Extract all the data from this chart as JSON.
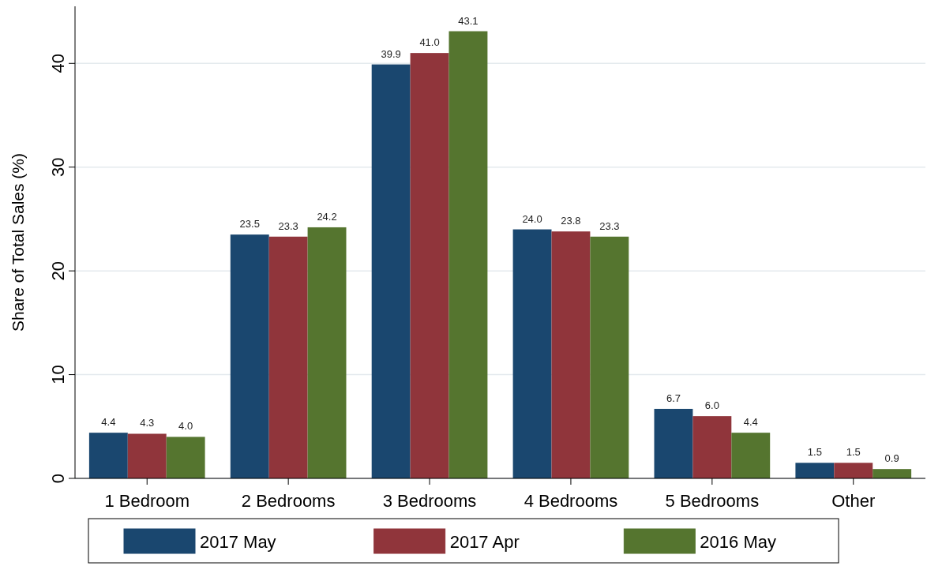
{
  "chart_data": {
    "type": "bar",
    "ylabel": "Share of Total Sales (%)",
    "categories": [
      "1 Bedroom",
      "2 Bedrooms",
      "3 Bedrooms",
      "4 Bedrooms",
      "5 Bedrooms",
      "Other"
    ],
    "series": [
      {
        "name": "2017 May",
        "color": "#1a476f",
        "values": [
          4.4,
          23.5,
          39.9,
          24.0,
          6.7,
          1.5
        ],
        "value_labels": [
          "4.4",
          "23.5",
          "39.9",
          "24.0",
          "6.7",
          "1.5"
        ]
      },
      {
        "name": "2017 Apr",
        "color": "#90353b",
        "values": [
          4.3,
          23.3,
          41.0,
          23.8,
          6.0,
          1.5
        ],
        "value_labels": [
          "4.3",
          "23.3",
          "41.0",
          "23.8",
          "6.0",
          "1.5"
        ]
      },
      {
        "name": "2016 May",
        "color": "#55752f",
        "values": [
          4.0,
          24.2,
          43.1,
          23.3,
          4.4,
          0.9
        ],
        "value_labels": [
          "4.0",
          "24.2",
          "43.1",
          "23.3",
          "4.4",
          "0.9"
        ]
      }
    ],
    "ylim": [
      0,
      45.5
    ],
    "yticks": [
      0,
      10,
      20,
      30,
      40
    ],
    "grid": "y",
    "legend": "bottom"
  }
}
